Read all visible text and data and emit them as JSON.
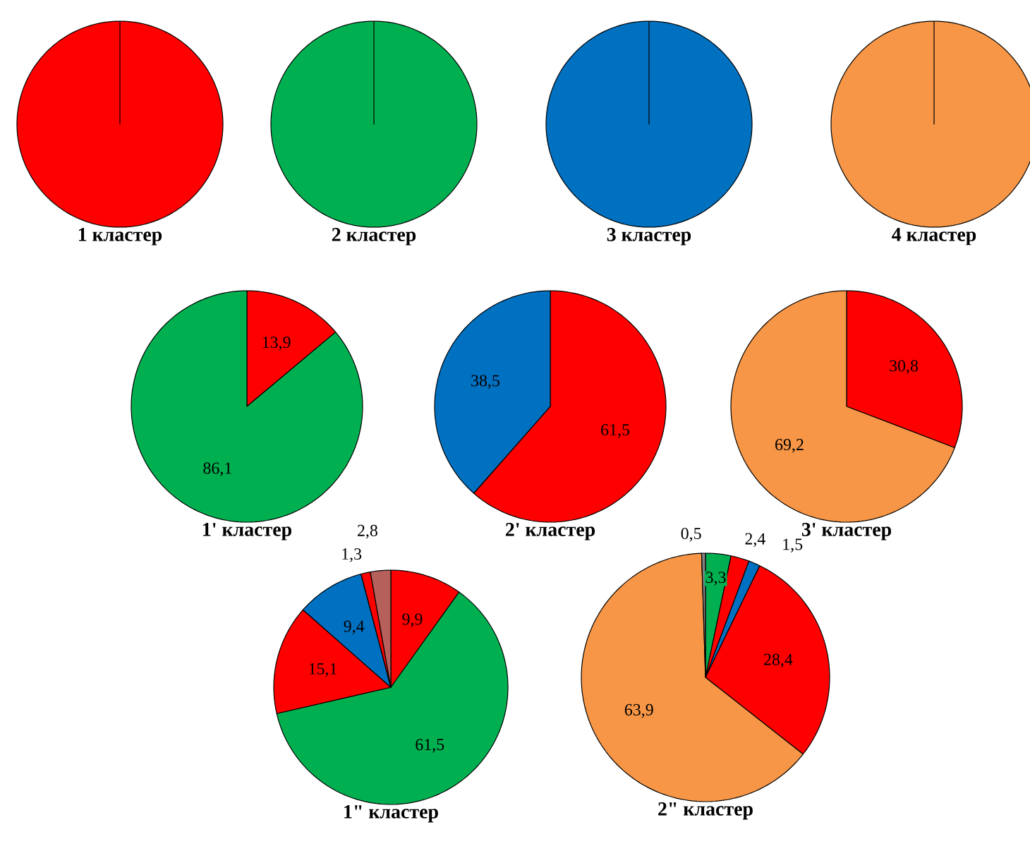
{
  "chart_data": [
    {
      "type": "pie",
      "title": "1 кластер",
      "categories": [
        null
      ],
      "values": [
        100
      ],
      "colors": [
        "#ff0000"
      ]
    },
    {
      "type": "pie",
      "title": "2 кластер",
      "categories": [
        null
      ],
      "values": [
        100
      ],
      "colors": [
        "#00b050"
      ]
    },
    {
      "type": "pie",
      "title": "3 кластер",
      "categories": [
        null
      ],
      "values": [
        100
      ],
      "colors": [
        "#0070c0"
      ]
    },
    {
      "type": "pie",
      "title": "4 кластер",
      "categories": [
        null
      ],
      "values": [
        100
      ],
      "colors": [
        "#f79646"
      ]
    },
    {
      "type": "pie",
      "title": "1' кластер",
      "categories": [
        null,
        null
      ],
      "values": [
        13.9,
        86.1
      ],
      "colors": [
        "#ff0000",
        "#00b050"
      ],
      "value_labels": [
        "13,9",
        "86,1"
      ]
    },
    {
      "type": "pie",
      "title": "2' кластер",
      "categories": [
        null,
        null
      ],
      "values": [
        61.5,
        38.5
      ],
      "colors": [
        "#ff0000",
        "#0070c0"
      ],
      "value_labels": [
        "61,5",
        "38,5"
      ]
    },
    {
      "type": "pie",
      "title": "3' кластер",
      "categories": [
        null,
        null
      ],
      "values": [
        30.8,
        69.2
      ],
      "colors": [
        "#ff0000",
        "#f79646"
      ],
      "value_labels": [
        "30,8",
        "69,2"
      ]
    },
    {
      "type": "pie",
      "title": "1\" кластер",
      "categories": [
        null,
        null,
        null,
        null,
        null,
        null
      ],
      "values": [
        9.9,
        61.5,
        15.1,
        9.4,
        1.3,
        2.8
      ],
      "colors": [
        "#ff0000",
        "#00b050",
        "#ff0000",
        "#0070c0",
        "#ff0000",
        "#b5605a"
      ],
      "value_labels": [
        "9,9",
        "61,5",
        "15,1",
        "9,4",
        "1,3",
        "2,8"
      ]
    },
    {
      "type": "pie",
      "title": "2\" кластер",
      "categories": [
        null,
        null,
        null,
        null,
        null,
        null
      ],
      "values": [
        3.3,
        2.4,
        1.5,
        28.4,
        63.9,
        0.5
      ],
      "colors": [
        "#00b050",
        "#ff0000",
        "#0070c0",
        "#ff0000",
        "#f79646",
        "#808080"
      ],
      "value_labels": [
        "3,3",
        "2,4",
        "1,5",
        "28,4",
        "63,9",
        "0,5"
      ]
    }
  ]
}
